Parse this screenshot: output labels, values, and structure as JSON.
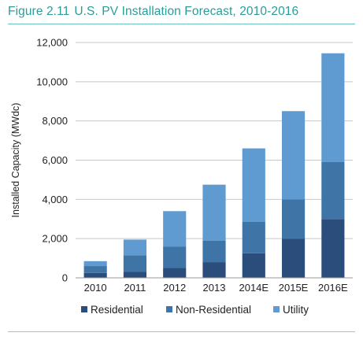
{
  "figure": {
    "number": "Figure 2.11",
    "title": "U.S. PV Installation Forecast, 2010-2016"
  },
  "colors": {
    "title": "#2a9d9a",
    "residential": "#2a4d7c",
    "non_residential": "#3e74a6",
    "utility": "#5f9bd0",
    "gridline": "#c8c8c8"
  },
  "chart_data": {
    "type": "bar",
    "stacked": true,
    "title": "U.S. PV Installation Forecast, 2010-2016",
    "xlabel": "",
    "ylabel": "Installed Capacity (MWdc)",
    "ylim": [
      0,
      12000
    ],
    "yticks": [
      0,
      2000,
      4000,
      6000,
      8000,
      10000,
      12000
    ],
    "ytick_labels": [
      "0",
      "2,000",
      "4,000",
      "6,000",
      "8,000",
      "10,000",
      "12,000"
    ],
    "categories": [
      "2010",
      "2011",
      "2012",
      "2013",
      "2014E",
      "2015E",
      "2016E"
    ],
    "series": [
      {
        "name": "Residential",
        "color": "#2a4d7c",
        "values": [
          250,
          300,
          500,
          800,
          1250,
          2000,
          3000
        ]
      },
      {
        "name": "Non-Residential",
        "color": "#3e74a6",
        "values": [
          350,
          850,
          1100,
          1100,
          1600,
          2000,
          2900
        ]
      },
      {
        "name": "Utility",
        "color": "#5f9bd0",
        "values": [
          250,
          800,
          1800,
          2850,
          3750,
          4500,
          5550
        ]
      }
    ],
    "grid": true,
    "legend_position": "bottom"
  }
}
